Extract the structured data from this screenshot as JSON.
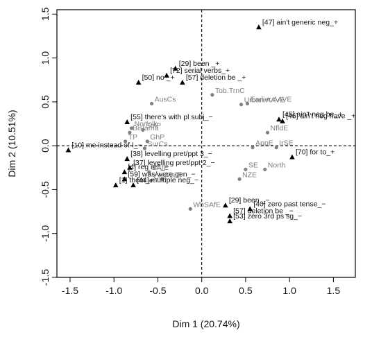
{
  "chart_data": {
    "type": "scatter",
    "title": "",
    "xlabel": "Dim 1 (20.74%)",
    "ylabel": "Dim 2 (10.51%)",
    "xlim": [
      -1.65,
      1.75
    ],
    "ylim": [
      -1.5,
      1.55
    ],
    "xticks": [
      -1.5,
      -1.0,
      -0.5,
      0.0,
      0.5,
      1.0,
      1.5
    ],
    "xtick_labels": [
      "-1.5",
      "-1.0",
      "-0.5",
      "0.0",
      "0.5",
      "1.0",
      "1.5"
    ],
    "yticks": [
      -1.5,
      -1.0,
      -0.5,
      0.0,
      0.5,
      1.0,
      1.5
    ],
    "ytick_labels": [
      "-1.5",
      "-1.0",
      "-0.5",
      "0.0",
      "0.5",
      "1.0",
      "1.5"
    ],
    "grid": false,
    "reference_lines": [
      {
        "axis": "x",
        "value": 0
      },
      {
        "axis": "y",
        "value": 0
      }
    ],
    "colors": {
      "variables": "#000000",
      "varieties": "#808080"
    },
    "series": [
      {
        "marker": "triangle",
        "points": [
          {
            "label": "[47] ain't generic neg_+",
            "x": 0.65,
            "y": 1.35
          },
          {
            "label": "[29] been _+",
            "x": -0.3,
            "y": 0.88
          },
          {
            "label": "[72] serial verbs_+",
            "x": -0.4,
            "y": 0.8
          },
          {
            "label": "[50] no _+",
            "x": -0.72,
            "y": 0.72
          },
          {
            "label": "[57] deletion be _+",
            "x": -0.22,
            "y": 0.72
          },
          {
            "label": "[55] there's with pl subj_−",
            "x": -0.85,
            "y": 0.27
          },
          {
            "label": "[45] ain't neg be_+",
            "x": 0.88,
            "y": 0.3
          },
          {
            "label": "[46] ain't neg have _+",
            "x": 0.92,
            "y": 0.28
          },
          {
            "label": "[10] me instead of I_−",
            "x": -1.52,
            "y": -0.05
          },
          {
            "label": "[70] for to_+",
            "x": 1.03,
            "y": -0.13
          },
          {
            "label": "[38] levelling pret/ppt 3_−",
            "x": -0.85,
            "y": -0.15
          },
          {
            "label": "[37] levelling pret/ppt 2_−",
            "x": -0.82,
            "y": -0.25
          },
          {
            "label": "[4] reg refl_−",
            "x": -0.88,
            "y": -0.3
          },
          {
            "label": "[59] was/were gen_−",
            "x": -0.88,
            "y": -0.38
          },
          {
            "label": "[1] them_−",
            "x": -0.98,
            "y": -0.45
          },
          {
            "label": "[44] multiple neg_−",
            "x": -0.78,
            "y": -0.45
          },
          {
            "label": "[29] been _−",
            "x": 0.27,
            "y": -0.68
          },
          {
            "label": "[40] zero past tense_−",
            "x": 0.55,
            "y": -0.72
          },
          {
            "label": "[57] deletion be _−",
            "x": 0.32,
            "y": -0.8
          },
          {
            "label": "[53] zero 3rd ps sg_−",
            "x": 0.32,
            "y": -0.86
          }
        ]
      },
      {
        "marker": "circle",
        "points": [
          {
            "label": "Tob.TrnC",
            "x": 0.12,
            "y": 0.58
          },
          {
            "label": "Urban.AAVE",
            "x": 0.45,
            "y": 0.47
          },
          {
            "label": "Earlier.AAVE",
            "x": 0.52,
            "y": 0.48
          },
          {
            "label": "AusCs",
            "x": -0.57,
            "y": 0.48
          },
          {
            "label": "Norfolk",
            "x": -0.8,
            "y": 0.2
          },
          {
            "label": "SolP",
            "x": -0.67,
            "y": 0.18
          },
          {
            "label": "Bislama",
            "x": -0.82,
            "y": 0.15
          },
          {
            "label": "GhP",
            "x": -0.62,
            "y": 0.05
          },
          {
            "label": "TP",
            "x": -0.87,
            "y": 0.05
          },
          {
            "label": "SurCs",
            "x": -0.65,
            "y": -0.03
          },
          {
            "label": "NfldE",
            "x": 0.75,
            "y": 0.15
          },
          {
            "label": "AppE",
            "x": 0.58,
            "y": -0.02
          },
          {
            "label": "IrSE",
            "x": 0.85,
            "y": -0.02
          },
          {
            "label": "EAfE",
            "x": -0.6,
            "y": -0.3
          },
          {
            "label": "ChE",
            "x": -0.58,
            "y": -0.4
          },
          {
            "label": "MalE",
            "x": -0.45,
            "y": -0.38
          },
          {
            "label": "SE",
            "x": 0.5,
            "y": -0.27
          },
          {
            "label": "North",
            "x": 0.72,
            "y": -0.27
          },
          {
            "label": "NZE",
            "x": 0.43,
            "y": -0.38
          },
          {
            "label": "WhSAfE",
            "x": -0.13,
            "y": -0.72
          }
        ]
      }
    ]
  }
}
